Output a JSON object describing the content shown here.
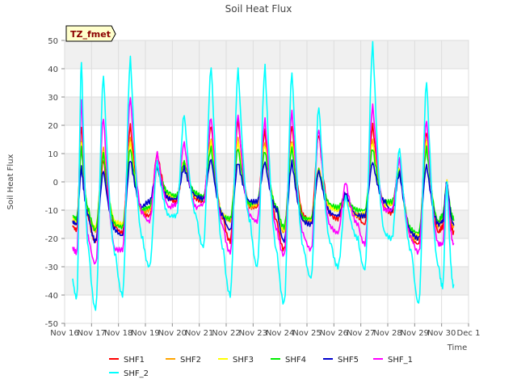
{
  "chart_data": {
    "type": "line",
    "title": "Soil Heat Flux",
    "xlabel": "Time",
    "ylabel": "Soil Heat Flux",
    "badge": "TZ_fmet",
    "ylim": [
      -50,
      50
    ],
    "yticks": [
      -50,
      -40,
      -30,
      -20,
      -10,
      0,
      10,
      20,
      30,
      40,
      50
    ],
    "xlim": [
      0,
      15
    ],
    "xticks": [
      {
        "x": 0,
        "label": "Nov 16"
      },
      {
        "x": 1,
        "label": "Nov 17"
      },
      {
        "x": 2,
        "label": "Nov 18"
      },
      {
        "x": 3,
        "label": "Nov 19"
      },
      {
        "x": 4,
        "label": "Nov 20"
      },
      {
        "x": 5,
        "label": "Nov 21"
      },
      {
        "x": 6,
        "label": "Nov 22"
      },
      {
        "x": 7,
        "label": "Nov 23"
      },
      {
        "x": 8,
        "label": "Nov 24"
      },
      {
        "x": 9,
        "label": "Nov 25"
      },
      {
        "x": 10,
        "label": "Nov 26"
      },
      {
        "x": 11,
        "label": "Nov 27"
      },
      {
        "x": 12,
        "label": "Nov 28"
      },
      {
        "x": 13,
        "label": "Nov 29"
      },
      {
        "x": 14,
        "label": "Nov 30"
      },
      {
        "x": 15,
        "label": "Dec 1"
      }
    ],
    "grid": true,
    "legend_position": "bottom",
    "days_x": [
      0.3,
      0.9,
      1.9,
      2.9,
      3.9,
      4.9,
      5.9,
      6.9,
      7.9,
      8.9,
      9.9,
      10.9,
      11.9,
      12.9,
      13.9
    ],
    "series": [
      {
        "name": "SHF1",
        "color": "#ff0000",
        "day_min": [
          -17,
          -21,
          -18,
          -12,
          -7,
          -7,
          -21,
          -9,
          -24,
          -14,
          -13,
          -15,
          -11,
          -22,
          -16
        ],
        "day_max": [
          20,
          8,
          20,
          10,
          7,
          20,
          22,
          18,
          20,
          17,
          -5,
          20,
          8,
          18,
          0
        ],
        "day_end": [
          -13,
          -16,
          -11,
          -6,
          -6,
          -13,
          -9,
          -14,
          -12,
          -12,
          -12,
          -9,
          -20,
          -18,
          -18
        ]
      },
      {
        "name": "SHF2",
        "color": "#ffa500",
        "day_min": [
          -15,
          -17,
          -16,
          -10,
          -6,
          -6,
          -14,
          -8,
          -18,
          -14,
          -10,
          -12,
          -8,
          -20,
          -14
        ],
        "day_max": [
          15,
          12,
          15,
          6,
          7,
          15,
          15,
          14,
          15,
          5,
          -5,
          15,
          5,
          15,
          0
        ],
        "day_end": [
          -12,
          -15,
          -11,
          -5,
          -5,
          -12,
          -9,
          -10,
          -14,
          -9,
          -12,
          -8,
          -20,
          -16,
          -16
        ]
      },
      {
        "name": "SHF3",
        "color": "#ffff00",
        "day_min": [
          -14,
          -16,
          -15,
          -9,
          -5,
          -6,
          -13,
          -8,
          -17,
          -13,
          -10,
          -11,
          -8,
          -19,
          -13
        ],
        "day_max": [
          14,
          10,
          14,
          5,
          7,
          14,
          14,
          13,
          14,
          4,
          -5,
          14,
          5,
          14,
          0
        ],
        "day_end": [
          -11,
          -14,
          -10,
          -5,
          -5,
          -12,
          -8,
          -10,
          -13,
          -9,
          -12,
          -8,
          -18,
          -15,
          -15
        ]
      },
      {
        "name": "SHF4",
        "color": "#00ee00",
        "day_min": [
          -13,
          -17,
          -16,
          -9,
          -5,
          -5,
          -13,
          -7,
          -16,
          -13,
          -9,
          -10,
          -7,
          -18,
          -12
        ],
        "day_max": [
          12,
          10,
          12,
          5,
          7,
          12,
          12,
          11,
          12,
          4,
          -5,
          12,
          4,
          12,
          0
        ],
        "day_end": [
          -10,
          -15,
          -10,
          -4,
          -4,
          -12,
          -8,
          -9,
          -13,
          -8,
          -10,
          -7,
          -17,
          -14,
          -13
        ]
      },
      {
        "name": "SHF5",
        "color": "#0000cd",
        "day_min": [
          -15,
          -21,
          -19,
          -7,
          -6,
          -6,
          -17,
          -7,
          -21,
          -15,
          -12,
          -12,
          -10,
          -20,
          -14
        ],
        "day_max": [
          5,
          4,
          8,
          5,
          5,
          8,
          7,
          7,
          7,
          4,
          -4,
          7,
          3,
          6,
          0
        ],
        "day_end": [
          -12,
          -17,
          -9,
          -6,
          -5,
          -12,
          -7,
          -10,
          -14,
          -11,
          -12,
          -7,
          -18,
          -15,
          -15
        ]
      },
      {
        "name": "SHF_1",
        "color": "#ff00ff",
        "day_min": [
          -25,
          -29,
          -24,
          -14,
          -8,
          -8,
          -25,
          -14,
          -26,
          -24,
          -18,
          -22,
          -10,
          -25,
          -22
        ],
        "day_max": [
          29,
          23,
          30,
          10,
          14,
          23,
          24,
          22,
          25,
          19,
          0,
          27,
          8,
          22,
          0
        ],
        "day_end": [
          -20,
          -24,
          -11,
          -9,
          -9,
          -16,
          -12,
          -17,
          -19,
          -16,
          -15,
          -10,
          -20,
          -22,
          -22
        ]
      },
      {
        "name": "SHF_2",
        "color": "#00ffff",
        "day_min": [
          -41,
          -45,
          -40,
          -30,
          -12,
          -23,
          -40,
          -30,
          -43,
          -34,
          -30,
          -31,
          -20,
          -43,
          -37
        ],
        "day_max": [
          43,
          38,
          44,
          7,
          24,
          41,
          40,
          41,
          39,
          27,
          -5,
          49,
          12,
          36,
          0
        ],
        "day_end": [
          -24,
          -26,
          -20,
          -12,
          -12,
          -24,
          -14,
          -25,
          -24,
          -22,
          -20,
          -18,
          -25,
          -30,
          -37
        ]
      }
    ]
  }
}
